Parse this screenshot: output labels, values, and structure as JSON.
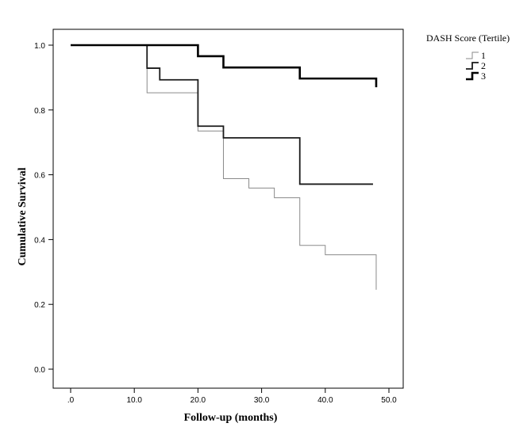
{
  "chart_data": {
    "type": "line",
    "step": true,
    "xlabel": "Follow-up (months)",
    "ylabel": "Cumulative Survival",
    "xlim": [
      0,
      50
    ],
    "ylim": [
      0,
      1.05
    ],
    "x_ticks": [
      0,
      10,
      20,
      30,
      40,
      50
    ],
    "x_tick_labels": [
      ".0",
      "10.0",
      "20.0",
      "30.0",
      "40.0",
      "50.0"
    ],
    "y_ticks": [
      0,
      0.2,
      0.4,
      0.6,
      0.8,
      1.0
    ],
    "y_tick_labels": [
      "0.0",
      "0.2",
      "0.4",
      "0.6",
      "0.8",
      "1.0"
    ],
    "grid": false,
    "legend": {
      "title": "DASH Score (Tertile)",
      "placement": "top-right"
    },
    "series": [
      {
        "name": "1",
        "color": "#8a8a8a",
        "stroke_style": "thin",
        "points": [
          [
            0,
            1.0
          ],
          [
            12,
            1.0
          ],
          [
            12,
            0.853
          ],
          [
            20,
            0.853
          ],
          [
            20,
            0.735
          ],
          [
            24,
            0.735
          ],
          [
            24,
            0.588
          ],
          [
            28,
            0.588
          ],
          [
            28,
            0.559
          ],
          [
            32,
            0.559
          ],
          [
            32,
            0.529
          ],
          [
            36,
            0.529
          ],
          [
            36,
            0.382
          ],
          [
            40,
            0.382
          ],
          [
            40,
            0.353
          ],
          [
            48,
            0.353
          ],
          [
            48,
            0.245
          ]
        ]
      },
      {
        "name": "2",
        "color": "#1a1a1a",
        "stroke_style": "medium",
        "points": [
          [
            0,
            1.0
          ],
          [
            12,
            1.0
          ],
          [
            12,
            0.929
          ],
          [
            14,
            0.929
          ],
          [
            14,
            0.893
          ],
          [
            20,
            0.893
          ],
          [
            20,
            0.75
          ],
          [
            24,
            0.75
          ],
          [
            24,
            0.714
          ],
          [
            36,
            0.714
          ],
          [
            36,
            0.571
          ],
          [
            47.5,
            0.571
          ]
        ]
      },
      {
        "name": "3",
        "color": "#000000",
        "stroke_style": "thick",
        "points": [
          [
            0,
            1.0
          ],
          [
            20,
            1.0
          ],
          [
            20,
            0.966
          ],
          [
            24,
            0.966
          ],
          [
            24,
            0.931
          ],
          [
            36,
            0.931
          ],
          [
            36,
            0.897
          ],
          [
            48,
            0.897
          ],
          [
            48,
            0.87
          ]
        ]
      }
    ]
  }
}
